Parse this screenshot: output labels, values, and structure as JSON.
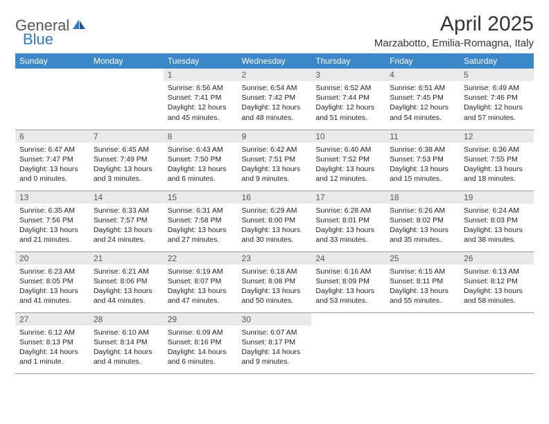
{
  "brand": {
    "general": "General",
    "blue": "Blue",
    "sail_color": "#2f78c3"
  },
  "title": "April 2025",
  "location": "Marzabotto, Emilia-Romagna, Italy",
  "colors": {
    "header_bg": "#3b87c8",
    "header_text": "#ffffff",
    "daynum_bg": "#e9e9e9",
    "border": "#999999",
    "text": "#222222"
  },
  "typography": {
    "body_fontsize": 10.5,
    "title_fontsize": 30,
    "weekday_fontsize": 12
  },
  "weekdays": [
    "Sunday",
    "Monday",
    "Tuesday",
    "Wednesday",
    "Thursday",
    "Friday",
    "Saturday"
  ],
  "weeks": [
    [
      null,
      null,
      {
        "n": "1",
        "sr": "Sunrise: 6:56 AM",
        "ss": "Sunset: 7:41 PM",
        "dl": "Daylight: 12 hours and 45 minutes."
      },
      {
        "n": "2",
        "sr": "Sunrise: 6:54 AM",
        "ss": "Sunset: 7:42 PM",
        "dl": "Daylight: 12 hours and 48 minutes."
      },
      {
        "n": "3",
        "sr": "Sunrise: 6:52 AM",
        "ss": "Sunset: 7:44 PM",
        "dl": "Daylight: 12 hours and 51 minutes."
      },
      {
        "n": "4",
        "sr": "Sunrise: 6:51 AM",
        "ss": "Sunset: 7:45 PM",
        "dl": "Daylight: 12 hours and 54 minutes."
      },
      {
        "n": "5",
        "sr": "Sunrise: 6:49 AM",
        "ss": "Sunset: 7:46 PM",
        "dl": "Daylight: 12 hours and 57 minutes."
      }
    ],
    [
      {
        "n": "6",
        "sr": "Sunrise: 6:47 AM",
        "ss": "Sunset: 7:47 PM",
        "dl": "Daylight: 13 hours and 0 minutes."
      },
      {
        "n": "7",
        "sr": "Sunrise: 6:45 AM",
        "ss": "Sunset: 7:49 PM",
        "dl": "Daylight: 13 hours and 3 minutes."
      },
      {
        "n": "8",
        "sr": "Sunrise: 6:43 AM",
        "ss": "Sunset: 7:50 PM",
        "dl": "Daylight: 13 hours and 6 minutes."
      },
      {
        "n": "9",
        "sr": "Sunrise: 6:42 AM",
        "ss": "Sunset: 7:51 PM",
        "dl": "Daylight: 13 hours and 9 minutes."
      },
      {
        "n": "10",
        "sr": "Sunrise: 6:40 AM",
        "ss": "Sunset: 7:52 PM",
        "dl": "Daylight: 13 hours and 12 minutes."
      },
      {
        "n": "11",
        "sr": "Sunrise: 6:38 AM",
        "ss": "Sunset: 7:53 PM",
        "dl": "Daylight: 13 hours and 15 minutes."
      },
      {
        "n": "12",
        "sr": "Sunrise: 6:36 AM",
        "ss": "Sunset: 7:55 PM",
        "dl": "Daylight: 13 hours and 18 minutes."
      }
    ],
    [
      {
        "n": "13",
        "sr": "Sunrise: 6:35 AM",
        "ss": "Sunset: 7:56 PM",
        "dl": "Daylight: 13 hours and 21 minutes."
      },
      {
        "n": "14",
        "sr": "Sunrise: 6:33 AM",
        "ss": "Sunset: 7:57 PM",
        "dl": "Daylight: 13 hours and 24 minutes."
      },
      {
        "n": "15",
        "sr": "Sunrise: 6:31 AM",
        "ss": "Sunset: 7:58 PM",
        "dl": "Daylight: 13 hours and 27 minutes."
      },
      {
        "n": "16",
        "sr": "Sunrise: 6:29 AM",
        "ss": "Sunset: 8:00 PM",
        "dl": "Daylight: 13 hours and 30 minutes."
      },
      {
        "n": "17",
        "sr": "Sunrise: 6:28 AM",
        "ss": "Sunset: 8:01 PM",
        "dl": "Daylight: 13 hours and 33 minutes."
      },
      {
        "n": "18",
        "sr": "Sunrise: 6:26 AM",
        "ss": "Sunset: 8:02 PM",
        "dl": "Daylight: 13 hours and 35 minutes."
      },
      {
        "n": "19",
        "sr": "Sunrise: 6:24 AM",
        "ss": "Sunset: 8:03 PM",
        "dl": "Daylight: 13 hours and 38 minutes."
      }
    ],
    [
      {
        "n": "20",
        "sr": "Sunrise: 6:23 AM",
        "ss": "Sunset: 8:05 PM",
        "dl": "Daylight: 13 hours and 41 minutes."
      },
      {
        "n": "21",
        "sr": "Sunrise: 6:21 AM",
        "ss": "Sunset: 8:06 PM",
        "dl": "Daylight: 13 hours and 44 minutes."
      },
      {
        "n": "22",
        "sr": "Sunrise: 6:19 AM",
        "ss": "Sunset: 8:07 PM",
        "dl": "Daylight: 13 hours and 47 minutes."
      },
      {
        "n": "23",
        "sr": "Sunrise: 6:18 AM",
        "ss": "Sunset: 8:08 PM",
        "dl": "Daylight: 13 hours and 50 minutes."
      },
      {
        "n": "24",
        "sr": "Sunrise: 6:16 AM",
        "ss": "Sunset: 8:09 PM",
        "dl": "Daylight: 13 hours and 53 minutes."
      },
      {
        "n": "25",
        "sr": "Sunrise: 6:15 AM",
        "ss": "Sunset: 8:11 PM",
        "dl": "Daylight: 13 hours and 55 minutes."
      },
      {
        "n": "26",
        "sr": "Sunrise: 6:13 AM",
        "ss": "Sunset: 8:12 PM",
        "dl": "Daylight: 13 hours and 58 minutes."
      }
    ],
    [
      {
        "n": "27",
        "sr": "Sunrise: 6:12 AM",
        "ss": "Sunset: 8:13 PM",
        "dl": "Daylight: 14 hours and 1 minute."
      },
      {
        "n": "28",
        "sr": "Sunrise: 6:10 AM",
        "ss": "Sunset: 8:14 PM",
        "dl": "Daylight: 14 hours and 4 minutes."
      },
      {
        "n": "29",
        "sr": "Sunrise: 6:09 AM",
        "ss": "Sunset: 8:16 PM",
        "dl": "Daylight: 14 hours and 6 minutes."
      },
      {
        "n": "30",
        "sr": "Sunrise: 6:07 AM",
        "ss": "Sunset: 8:17 PM",
        "dl": "Daylight: 14 hours and 9 minutes."
      },
      null,
      null,
      null
    ]
  ]
}
